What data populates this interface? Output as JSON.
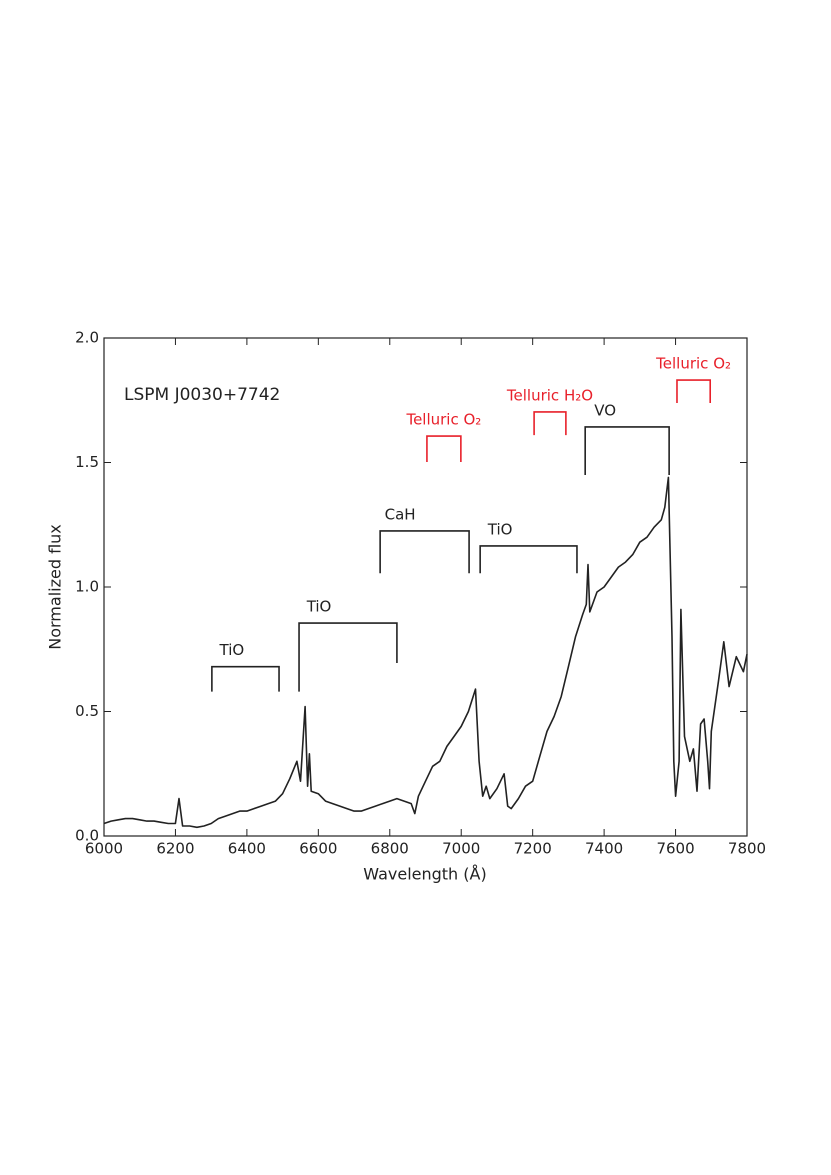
{
  "chart_data": {
    "type": "line",
    "title": "LSPM J0030+7742",
    "x_label": "Wavelength (Å)",
    "y_label": "Normalized flux",
    "color": "#222222",
    "xlim": [
      6000,
      7800
    ],
    "ylim": [
      0,
      2
    ],
    "xticks": [
      6000,
      6200,
      6400,
      6600,
      6800,
      7000,
      7200,
      7400,
      7600,
      7800
    ],
    "yticks": [
      {
        "value": 0,
        "label": "0.0"
      },
      0.5,
      {
        "value": 1,
        "label": "1.0"
      },
      1.5,
      {
        "value": 2,
        "label": "2.0"
      }
    ],
    "x": [
      6000,
      6020,
      6040,
      6060,
      6080,
      6100,
      6120,
      6140,
      6160,
      6180,
      6200,
      6210,
      6220,
      6240,
      6260,
      6280,
      6300,
      6320,
      6340,
      6360,
      6380,
      6400,
      6420,
      6440,
      6460,
      6480,
      6500,
      6520,
      6540,
      6550,
      6563,
      6570,
      6575,
      6580,
      6600,
      6620,
      6640,
      6660,
      6680,
      6700,
      6720,
      6740,
      6760,
      6780,
      6800,
      6820,
      6840,
      6860,
      6870,
      6880,
      6900,
      6920,
      6940,
      6960,
      6980,
      7000,
      7020,
      7040,
      7050,
      7060,
      7070,
      7080,
      7100,
      7120,
      7130,
      7140,
      7160,
      7180,
      7200,
      7220,
      7240,
      7260,
      7280,
      7300,
      7320,
      7340,
      7350,
      7355,
      7360,
      7380,
      7400,
      7420,
      7440,
      7460,
      7480,
      7500,
      7520,
      7540,
      7560,
      7570,
      7580,
      7590,
      7595,
      7600,
      7610,
      7615,
      7625,
      7640,
      7650,
      7660,
      7670,
      7680,
      7690,
      7695,
      7700,
      7720,
      7735,
      7750,
      7770,
      7790,
      7800
    ],
    "values": [
      0.05,
      0.06,
      0.065,
      0.07,
      0.07,
      0.065,
      0.06,
      0.06,
      0.055,
      0.05,
      0.05,
      0.15,
      0.04,
      0.04,
      0.035,
      0.04,
      0.05,
      0.07,
      0.08,
      0.09,
      0.1,
      0.1,
      0.11,
      0.12,
      0.13,
      0.14,
      0.17,
      0.23,
      0.3,
      0.22,
      0.52,
      0.2,
      0.33,
      0.18,
      0.17,
      0.14,
      0.13,
      0.12,
      0.11,
      0.1,
      0.1,
      0.11,
      0.12,
      0.13,
      0.14,
      0.15,
      0.14,
      0.13,
      0.09,
      0.16,
      0.22,
      0.28,
      0.3,
      0.36,
      0.4,
      0.44,
      0.5,
      0.59,
      0.3,
      0.16,
      0.2,
      0.15,
      0.19,
      0.25,
      0.12,
      0.11,
      0.15,
      0.2,
      0.22,
      0.32,
      0.42,
      0.48,
      0.56,
      0.68,
      0.8,
      0.89,
      0.93,
      1.09,
      0.9,
      0.98,
      1.0,
      1.04,
      1.08,
      1.1,
      1.13,
      1.18,
      1.2,
      1.24,
      1.27,
      1.32,
      1.44,
      0.8,
      0.3,
      0.16,
      0.3,
      0.91,
      0.4,
      0.3,
      0.35,
      0.18,
      0.45,
      0.47,
      0.3,
      0.19,
      0.42,
      0.62,
      0.78,
      0.6,
      0.72,
      0.66,
      0.73
    ],
    "annotations": [
      {
        "label": "TiO",
        "range": [
          6302,
          6490
        ],
        "y": 0.68,
        "ends": [
          0.58,
          0.58
        ],
        "color": "#222222"
      },
      {
        "label": "TiO",
        "range": [
          6546,
          6820
        ],
        "y": 0.855,
        "ends": [
          0.58,
          0.695
        ],
        "color": "#222222"
      },
      {
        "label": "CaH",
        "range": [
          6773,
          7022
        ],
        "y": 1.225,
        "ends": [
          1.055,
          1.055
        ],
        "color": "#222222"
      },
      {
        "label": "TiO",
        "range": [
          7053,
          7324
        ],
        "y": 1.165,
        "ends": [
          1.055,
          1.055
        ],
        "color": "#222222"
      },
      {
        "label": "VO",
        "range": [
          7347,
          7582
        ],
        "y": 1.643,
        "ends": [
          1.45,
          1.45
        ],
        "color": "#222222"
      },
      {
        "label": "Telluric O₂",
        "range": [
          6904,
          6999
        ],
        "y": 1.606,
        "ends": [
          1.502,
          1.502
        ],
        "color": "#e8202a"
      },
      {
        "label": "Telluric H₂O",
        "range": [
          7204,
          7293
        ],
        "y": 1.703,
        "ends": [
          1.61,
          1.61
        ],
        "color": "#e8202a"
      },
      {
        "label": "Telluric O₂",
        "range": [
          7604,
          7697
        ],
        "y": 1.831,
        "ends": [
          1.739,
          1.739
        ],
        "color": "#e8202a"
      }
    ]
  }
}
